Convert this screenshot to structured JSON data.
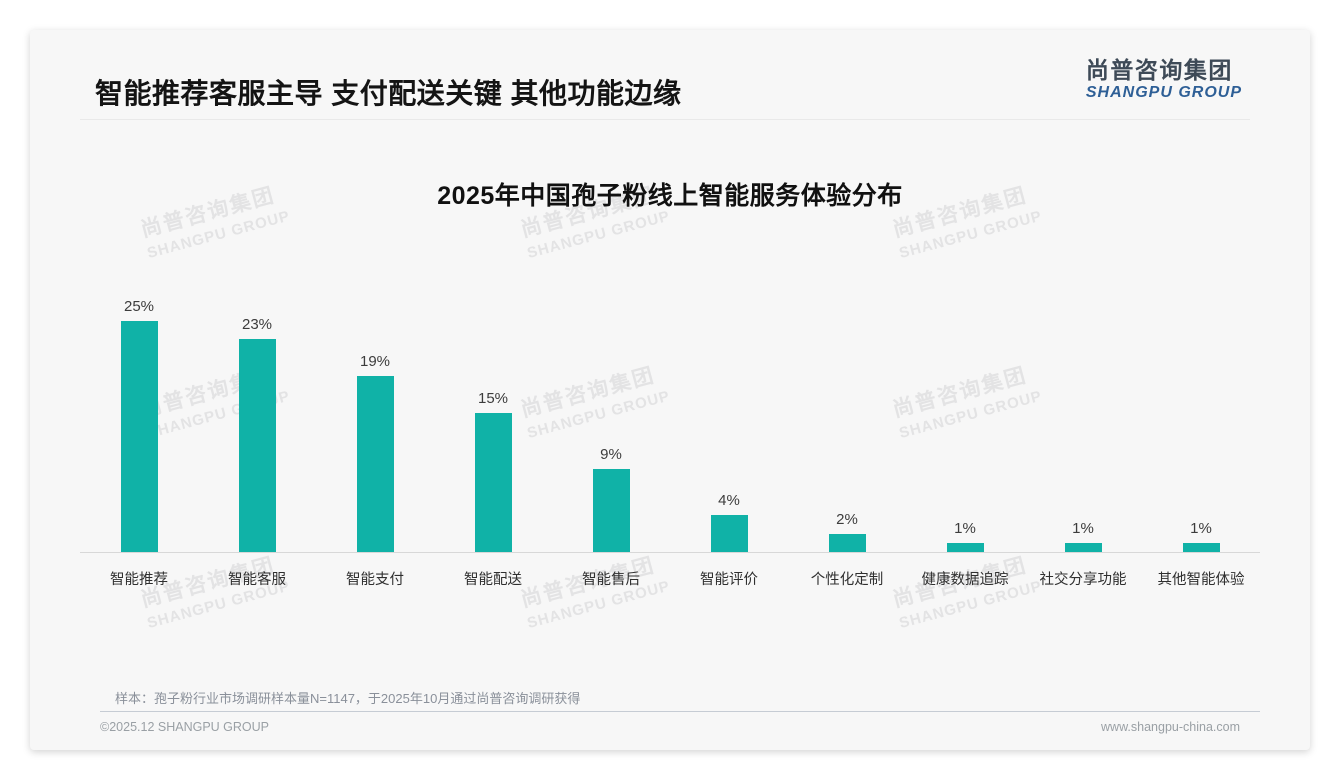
{
  "page": {
    "main_title": "智能推荐客服主导 支付配送关键 其他功能边缘",
    "logo": {
      "cn": "尚普咨询集团",
      "en": "SHANGPU GROUP"
    },
    "watermark": {
      "line1": "尚普咨询集团",
      "line2": "SHANGPU GROUP"
    },
    "footer": {
      "note": "样本：孢子粉行业市场调研样本量N=1147，于2025年10月通过尚普咨询调研获得",
      "copyright": "©2025.12 SHANGPU GROUP",
      "website": "www.shangpu-china.com"
    },
    "colors": {
      "bar": "#10b2a7",
      "logo_cn": "#3e4a57",
      "logo_en": "#2e5f96",
      "card_bg": "#f7f7f7",
      "watermark": "#e3e3e4"
    }
  },
  "chart_data": {
    "type": "bar",
    "title": "2025年中国孢子粉线上智能服务体验分布",
    "categories": [
      "智能推荐",
      "智能客服",
      "智能支付",
      "智能配送",
      "智能售后",
      "智能评价",
      "个性化定制",
      "健康数据追踪",
      "社交分享功能",
      "其他智能体验"
    ],
    "values": [
      25,
      23,
      19,
      15,
      9,
      4,
      2,
      1,
      1,
      1
    ],
    "value_labels": [
      "25%",
      "23%",
      "19%",
      "15%",
      "9%",
      "4%",
      "2%",
      "1%",
      "1%",
      "1%"
    ],
    "unit": "%",
    "xlabel": "",
    "ylabel": "",
    "ylim": [
      0,
      27
    ],
    "grid": false,
    "legend": "none",
    "bar_color": "#10b2a7"
  }
}
